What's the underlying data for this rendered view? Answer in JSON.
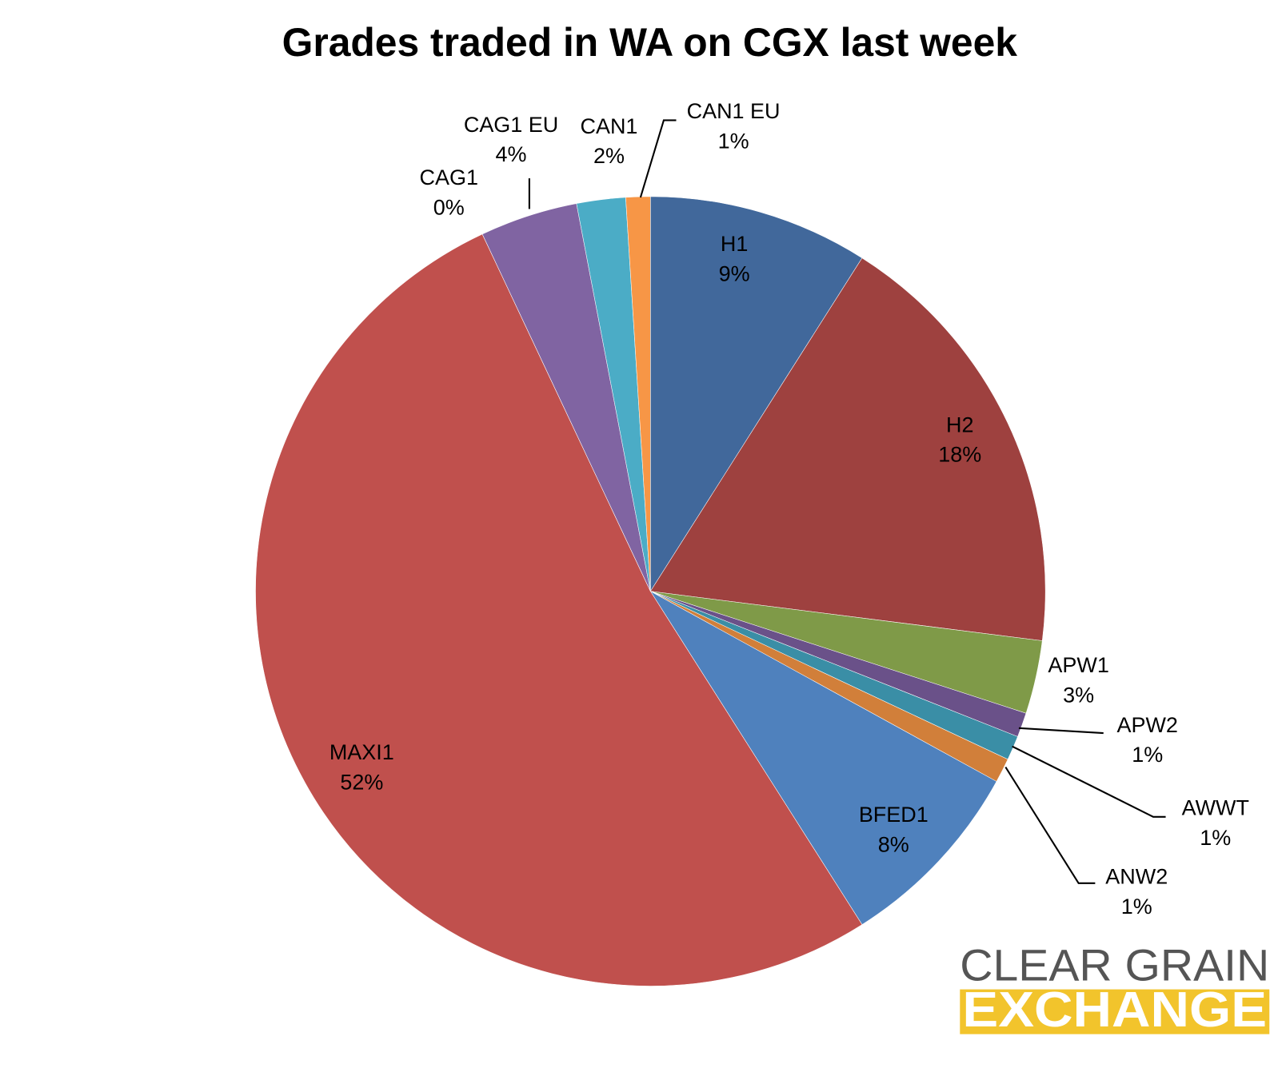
{
  "chart_data": {
    "type": "pie",
    "title": "Grades traded in WA on CGX last week",
    "categories": [
      "H1",
      "H2",
      "APW1",
      "APW2",
      "AWWT",
      "ANW2",
      "BFED1",
      "MAXI1",
      "CAG1",
      "CAG1 EU",
      "CAN1",
      "CAN1 EU"
    ],
    "values": [
      9,
      18,
      3,
      1,
      1,
      1,
      8,
      52,
      0,
      4,
      2,
      1
    ],
    "value_labels": [
      "9%",
      "18%",
      "3%",
      "1%",
      "1%",
      "1%",
      "8%",
      "52%",
      "0%",
      "4%",
      "2%",
      "1%"
    ],
    "colors": [
      "#41689b",
      "#9e413f",
      "#7f9a48",
      "#6a5189",
      "#3a8ea6",
      "#d17f3a",
      "#4f81bd",
      "#c0504d",
      "#9bbb59",
      "#8064a2",
      "#4bacc6",
      "#f79646"
    ]
  },
  "logo": {
    "line1": "CLEAR GRAIN",
    "line2": "EXCHANGE"
  }
}
